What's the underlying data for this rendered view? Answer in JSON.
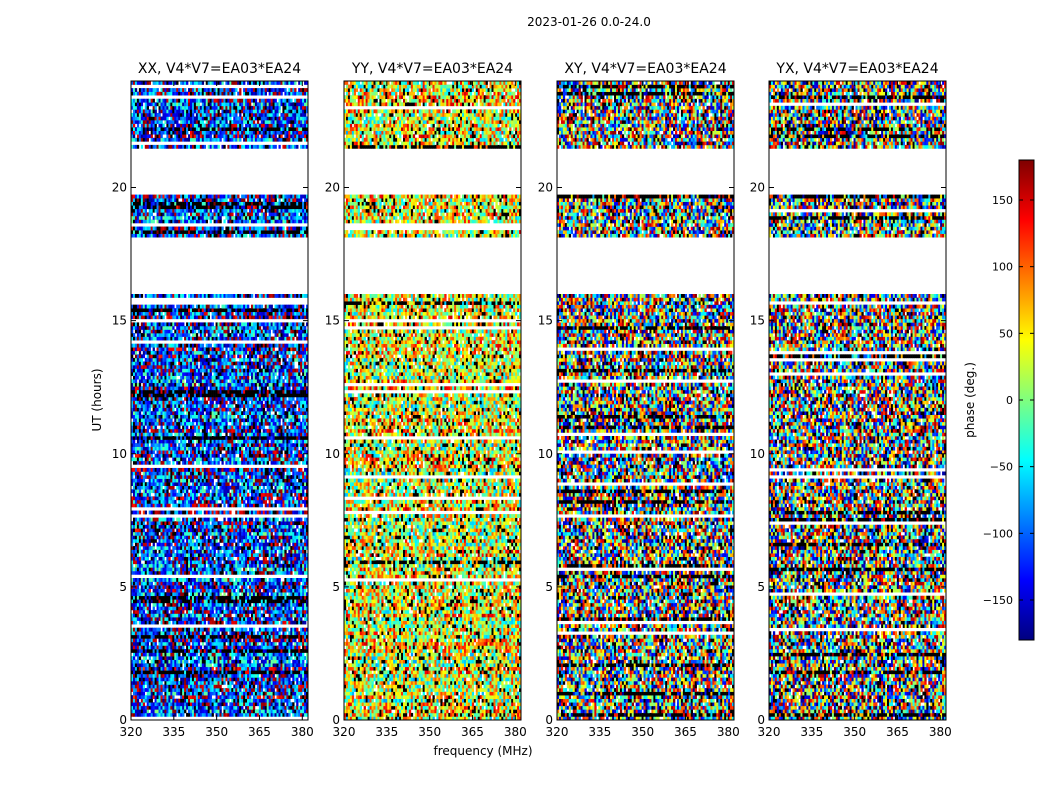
{
  "figure": {
    "suptitle": "2023-01-26 0.0-24.0",
    "xlabel": "frequency (MHz)",
    "ylabel": "UT (hours)"
  },
  "chart_data": {
    "type": "heatmap",
    "xlim": [
      320,
      382
    ],
    "ylim": [
      0,
      24
    ],
    "xticks": [
      320,
      335,
      350,
      365,
      380
    ],
    "yticks": [
      0,
      5,
      10,
      15,
      20
    ],
    "clim": [
      -180,
      180
    ],
    "colorbar": {
      "label": "phase (deg.)",
      "ticks": [
        150,
        100,
        50,
        0,
        -50,
        -100,
        -150
      ],
      "tick_labels": [
        "150",
        "100",
        "50",
        "0",
        "−50",
        "−100",
        "−150"
      ],
      "cmap": [
        "#00007f",
        "#0000ff",
        "#007fff",
        "#00ffff",
        "#7fff7f",
        "#ffff00",
        "#ff7f00",
        "#ff0000",
        "#7f0000"
      ]
    },
    "gaps_hours": [
      [
        16.0,
        18.1
      ],
      [
        19.8,
        21.5
      ]
    ],
    "panels": [
      {
        "title": "XX, V4*V7=EA03*EA24",
        "bias": -120,
        "noise": 0.55
      },
      {
        "title": "YY, V4*V7=EA03*EA24",
        "bias": 40,
        "noise": 0.55
      },
      {
        "title": "XY, V4*V7=EA03*EA24",
        "bias": 0,
        "noise": 1.0
      },
      {
        "title": "YX, V4*V7=EA03*EA24",
        "bias": 0,
        "noise": 1.0
      }
    ]
  }
}
